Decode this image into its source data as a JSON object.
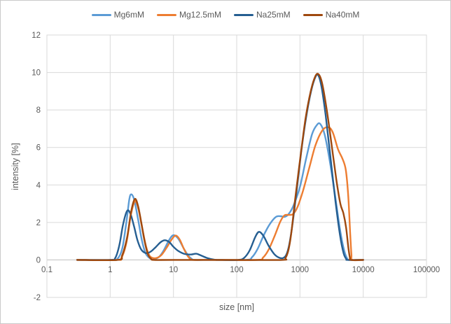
{
  "chart_data": {
    "type": "line",
    "title": "",
    "legend_position": "top",
    "grid": true,
    "gridline_color": "#D9D9D9",
    "axis_line_color": "#BFBFBF",
    "text_color": "#595959",
    "x_axis": {
      "label": "size [nm]",
      "scale": "log",
      "min": 0.1,
      "max": 100000,
      "ticks": [
        0.1,
        1,
        10,
        100,
        1000,
        10000,
        100000
      ],
      "tick_labels": [
        "0.1",
        "1",
        "10",
        "100",
        "1000",
        "10000",
        "100000"
      ]
    },
    "y_axis": {
      "label": "intensity [%]",
      "min": -2,
      "max": 12,
      "ticks": [
        -2,
        0,
        2,
        4,
        6,
        8,
        10,
        12
      ],
      "tick_labels": [
        "-2",
        "0",
        "2",
        "4",
        "6",
        "8",
        "10",
        "12"
      ]
    },
    "series": [
      {
        "name": "Mg6mM",
        "color": "#5B9BD5",
        "points": [
          [
            0.3,
            0
          ],
          [
            1.05,
            0
          ],
          [
            1.3,
            0.05
          ],
          [
            1.55,
            0.6
          ],
          [
            1.8,
            2.0
          ],
          [
            2.0,
            3.2
          ],
          [
            2.15,
            3.5
          ],
          [
            2.4,
            3.2
          ],
          [
            2.75,
            2.2
          ],
          [
            3.15,
            1.1
          ],
          [
            3.6,
            0.38
          ],
          [
            4.2,
            0.1
          ],
          [
            5,
            0.05
          ],
          [
            6,
            0.18
          ],
          [
            7,
            0.5
          ],
          [
            8.5,
            1.05
          ],
          [
            10,
            1.32
          ],
          [
            12,
            1.12
          ],
          [
            14.5,
            0.62
          ],
          [
            17,
            0.25
          ],
          [
            19.5,
            0.05
          ],
          [
            22,
            0
          ],
          [
            40,
            0
          ],
          [
            140,
            0
          ],
          [
            175,
            0.15
          ],
          [
            215,
            0.6
          ],
          [
            270,
            1.35
          ],
          [
            340,
            1.95
          ],
          [
            420,
            2.3
          ],
          [
            500,
            2.33
          ],
          [
            580,
            2.3
          ],
          [
            680,
            2.5
          ],
          [
            800,
            2.95
          ],
          [
            1000,
            3.9
          ],
          [
            1250,
            5.4
          ],
          [
            1550,
            6.7
          ],
          [
            1850,
            7.2
          ],
          [
            2100,
            7.25
          ],
          [
            2450,
            6.7
          ],
          [
            2950,
            5.3
          ],
          [
            3600,
            3.4
          ],
          [
            4300,
            1.6
          ],
          [
            5000,
            0.5
          ],
          [
            5600,
            0.07
          ],
          [
            6000,
            0
          ],
          [
            10000,
            0
          ]
        ]
      },
      {
        "name": "Mg12.5mM",
        "color": "#ED7D31",
        "points": [
          [
            0.3,
            0
          ],
          [
            1.25,
            0
          ],
          [
            1.5,
            0.1
          ],
          [
            1.8,
            0.9
          ],
          [
            2.1,
            2.3
          ],
          [
            2.35,
            3.0
          ],
          [
            2.55,
            3.12
          ],
          [
            2.85,
            2.6
          ],
          [
            3.25,
            1.6
          ],
          [
            3.7,
            0.7
          ],
          [
            4.2,
            0.22
          ],
          [
            4.8,
            0.1
          ],
          [
            5.6,
            0.12
          ],
          [
            6.6,
            0.3
          ],
          [
            7.8,
            0.65
          ],
          [
            9.2,
            1.05
          ],
          [
            10.8,
            1.3
          ],
          [
            12.5,
            1.1
          ],
          [
            14.5,
            0.62
          ],
          [
            16.5,
            0.25
          ],
          [
            18.5,
            0.05
          ],
          [
            20.5,
            0
          ],
          [
            40,
            0
          ],
          [
            210,
            0
          ],
          [
            260,
            0.12
          ],
          [
            320,
            0.55
          ],
          [
            400,
            1.3
          ],
          [
            490,
            2.05
          ],
          [
            570,
            2.38
          ],
          [
            670,
            2.4
          ],
          [
            780,
            2.45
          ],
          [
            920,
            2.85
          ],
          [
            1120,
            3.7
          ],
          [
            1400,
            4.9
          ],
          [
            1750,
            6.1
          ],
          [
            2250,
            6.9
          ],
          [
            2800,
            7.08
          ],
          [
            3300,
            6.8
          ],
          [
            4000,
            5.9
          ],
          [
            4700,
            5.4
          ],
          [
            5300,
            4.8
          ],
          [
            5800,
            3.4
          ],
          [
            6200,
            1.5
          ],
          [
            6500,
            0.3
          ],
          [
            6750,
            0
          ],
          [
            10000,
            0
          ]
        ]
      },
      {
        "name": "Na25mM",
        "color": "#255E91",
        "points": [
          [
            0.3,
            0
          ],
          [
            1.0,
            0
          ],
          [
            1.2,
            0.1
          ],
          [
            1.4,
            0.8
          ],
          [
            1.6,
            1.9
          ],
          [
            1.85,
            2.62
          ],
          [
            2.1,
            2.45
          ],
          [
            2.4,
            1.75
          ],
          [
            2.7,
            1.05
          ],
          [
            3.1,
            0.55
          ],
          [
            3.7,
            0.36
          ],
          [
            4.4,
            0.45
          ],
          [
            5.3,
            0.7
          ],
          [
            6.3,
            0.95
          ],
          [
            7.3,
            1.05
          ],
          [
            8.6,
            0.95
          ],
          [
            10,
            0.7
          ],
          [
            12,
            0.47
          ],
          [
            15,
            0.32
          ],
          [
            19,
            0.29
          ],
          [
            23,
            0.33
          ],
          [
            28,
            0.22
          ],
          [
            35,
            0.09
          ],
          [
            45,
            0.01
          ],
          [
            55,
            0
          ],
          [
            105,
            0
          ],
          [
            130,
            0.1
          ],
          [
            160,
            0.5
          ],
          [
            195,
            1.2
          ],
          [
            225,
            1.5
          ],
          [
            265,
            1.28
          ],
          [
            320,
            0.75
          ],
          [
            390,
            0.32
          ],
          [
            460,
            0.13
          ],
          [
            540,
            0.1
          ],
          [
            610,
            0.28
          ],
          [
            680,
            0.85
          ],
          [
            760,
            1.9
          ],
          [
            880,
            3.6
          ],
          [
            1050,
            5.8
          ],
          [
            1250,
            7.6
          ],
          [
            1500,
            9.0
          ],
          [
            1750,
            9.75
          ],
          [
            1950,
            9.85
          ],
          [
            2200,
            9.2
          ],
          [
            2550,
            7.7
          ],
          [
            3050,
            5.4
          ],
          [
            3650,
            3.1
          ],
          [
            4300,
            1.3
          ],
          [
            4900,
            0.35
          ],
          [
            5400,
            0.05
          ],
          [
            5700,
            0
          ],
          [
            10000,
            0
          ]
        ]
      },
      {
        "name": "Na40mM",
        "color": "#9E480E",
        "points": [
          [
            0.3,
            0
          ],
          [
            1.3,
            0
          ],
          [
            1.55,
            0.25
          ],
          [
            1.85,
            1.2
          ],
          [
            2.15,
            2.6
          ],
          [
            2.45,
            3.25
          ],
          [
            2.75,
            2.9
          ],
          [
            3.1,
            2.0
          ],
          [
            3.5,
            1.0
          ],
          [
            3.95,
            0.3
          ],
          [
            4.4,
            0.07
          ],
          [
            4.9,
            0
          ],
          [
            10,
            0
          ],
          [
            100,
            0
          ],
          [
            520,
            0
          ],
          [
            590,
            0.1
          ],
          [
            660,
            0.55
          ],
          [
            730,
            1.45
          ],
          [
            830,
            3.1
          ],
          [
            1000,
            5.3
          ],
          [
            1220,
            7.5
          ],
          [
            1480,
            9.0
          ],
          [
            1750,
            9.8
          ],
          [
            1980,
            9.9
          ],
          [
            2250,
            9.4
          ],
          [
            2650,
            8.0
          ],
          [
            3150,
            6.2
          ],
          [
            3750,
            4.3
          ],
          [
            4350,
            3.0
          ],
          [
            4850,
            2.5
          ],
          [
            5350,
            1.75
          ],
          [
            5800,
            0.7
          ],
          [
            6150,
            0.12
          ],
          [
            6400,
            0
          ],
          [
            10000,
            0
          ]
        ]
      }
    ]
  }
}
